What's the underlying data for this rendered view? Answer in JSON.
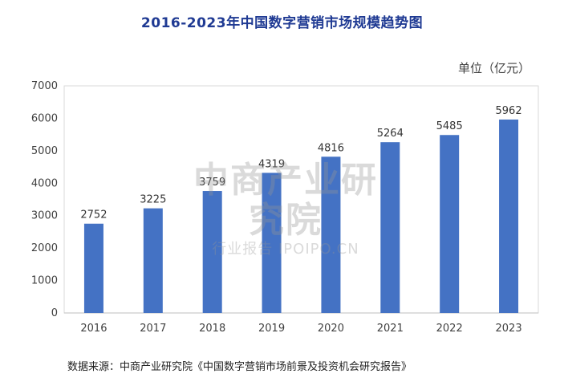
{
  "title": "2016-2023年中国数字营销市场规模趋势图",
  "unit": "单位（亿元）",
  "source": "数据来源：中商产业研究院《中国数字营销市场前景及投资机会研究报告》",
  "watermark": {
    "main": "中商产业研究院",
    "sub": "行业报告 IPOIPO.CN"
  },
  "colors": {
    "bar": "#4472c4",
    "title": "#1f3a93"
  },
  "chart_data": {
    "type": "bar",
    "title": "2016-2023年中国数字营销市场规模趋势图",
    "ylabel": "单位（亿元）",
    "categories": [
      "2016",
      "2017",
      "2018",
      "2019",
      "2020",
      "2021",
      "2022",
      "2023"
    ],
    "values": [
      2752,
      3225,
      3759,
      4319,
      4816,
      5264,
      5485,
      5962
    ],
    "ylim": [
      0,
      7000
    ],
    "yticks": [
      0,
      1000,
      2000,
      3000,
      4000,
      5000,
      6000,
      7000
    ],
    "grid": false,
    "data_labels": true
  }
}
